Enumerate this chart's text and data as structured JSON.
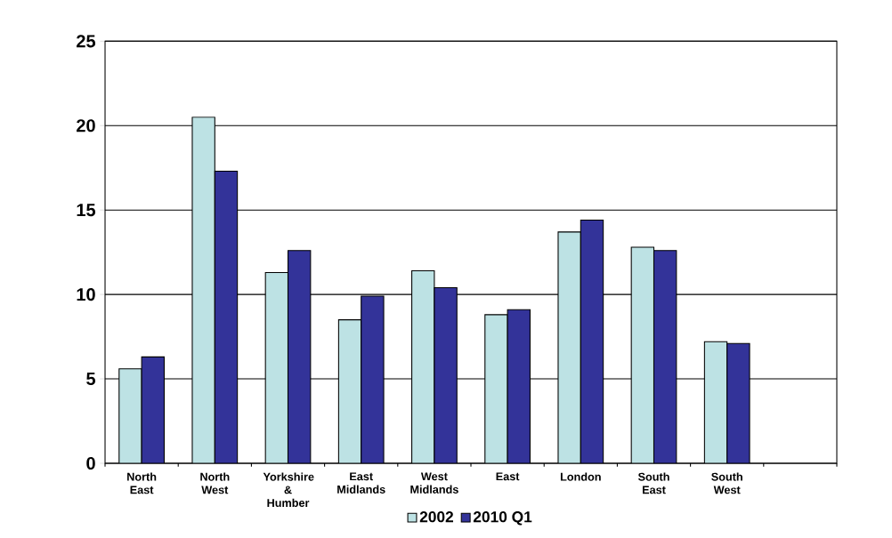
{
  "chart_data": {
    "type": "bar",
    "categories": [
      "North East",
      "North West",
      "Yorkshire & Humber",
      "East Midlands",
      "West Midlands",
      "East",
      "London",
      "South East",
      "South West",
      null
    ],
    "series": [
      {
        "name": "2002",
        "color": "#bde2e4",
        "values": [
          5.6,
          20.5,
          11.3,
          8.5,
          11.4,
          8.8,
          13.7,
          12.8,
          7.2,
          null
        ]
      },
      {
        "name": "2010 Q1",
        "color": "#333399",
        "values": [
          6.3,
          17.3,
          12.6,
          9.9,
          10.4,
          9.1,
          14.4,
          12.6,
          7.1,
          null
        ]
      }
    ],
    "ylim": [
      0,
      25
    ],
    "yticks": [
      0,
      5,
      10,
      15,
      20,
      25
    ],
    "grid": "y",
    "legend": "bottom"
  }
}
